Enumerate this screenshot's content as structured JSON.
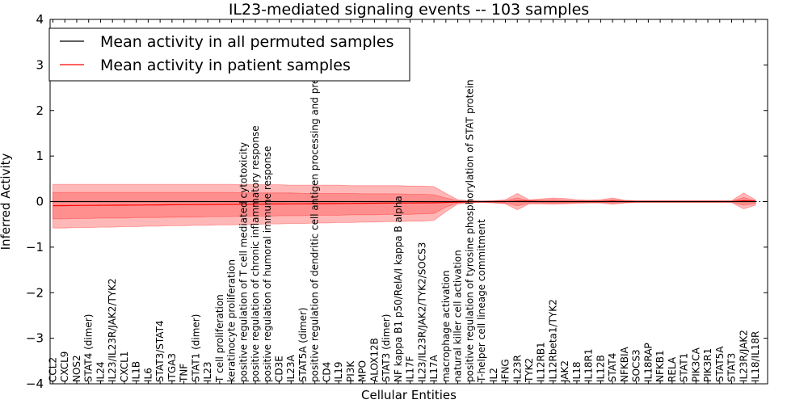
{
  "chart_data": {
    "type": "line",
    "title": "IL23-mediated signaling events -- 103 samples",
    "xlabel": "Cellular Entities",
    "ylabel": "Inferred Activity",
    "ylim": [
      -4,
      4
    ],
    "yticks": [
      -4,
      -3,
      -2,
      -1,
      0,
      1,
      2,
      3,
      4
    ],
    "legend_position": "top-left",
    "categories": [
      "CCL2",
      "CXCL9",
      "NOS2",
      "STAT4 (dimer)",
      "IL24",
      "IL23/IL23R/JAK2/TYK2",
      "CXCL1",
      "IL1B",
      "IL6",
      "STAT3/STAT4",
      "ITGA3",
      "TNF",
      "STAT1 (dimer)",
      "IL23",
      "T cell proliferation",
      "keratinocyte proliferation",
      "positive regulation of T cell mediated cytotoxicity",
      "positive regulation of chronic inflammatory response",
      "positive regulation of humoral immune response",
      "CD3E",
      "IL23A",
      "STAT5A (dimer)",
      "positive regulation of dendritic cell antigen processing and presentation",
      "CD4",
      "IL19",
      "PI3K",
      "MPO",
      "ALOX12B",
      "STAT3 (dimer)",
      "NF kappa B1 p50/RelA/I kappa B alpha",
      "IL17F",
      "IL23/IL23R/JAK2/TYK2/SOCS3",
      "IL17A",
      "macrophage activation",
      "natural killer cell activation",
      "positive regulation of tyrosine phosphorylation of STAT protein",
      "T-helper cell lineage commitment",
      "IL2",
      "IFNG",
      "IL23R",
      "TYK2",
      "IL12RB1",
      "IL12Rbeta1/TYK2",
      "JAK2",
      "IL18",
      "IL18R1",
      "IL12B",
      "STAT4",
      "NFKBIA",
      "SOCS3",
      "IL18RAP",
      "NFKB1",
      "RELA",
      "STAT1",
      "PIK3CA",
      "PIK3R1",
      "STAT5A",
      "STAT3",
      "IL23R/JAK2",
      "IL18/IL18R"
    ],
    "series": [
      {
        "name": "Mean activity in all permuted samples",
        "color": "#000000",
        "values": [
          0,
          0,
          0,
          0,
          0,
          0,
          0,
          0,
          0,
          0,
          0,
          0,
          0,
          0,
          0,
          0,
          0,
          0,
          0,
          0,
          0,
          0,
          0,
          0,
          0,
          0,
          0,
          0,
          0,
          0,
          0,
          0,
          0,
          0,
          0,
          0,
          0,
          0,
          0,
          0,
          0,
          0,
          0,
          0,
          0,
          0,
          0,
          0,
          0,
          0,
          0,
          0,
          0,
          0,
          0,
          0,
          0,
          0,
          0,
          0
        ]
      },
      {
        "name": "Mean activity in patient samples",
        "color": "#ff0000",
        "values": [
          -0.09,
          -0.088,
          -0.086,
          -0.084,
          -0.082,
          -0.08,
          -0.078,
          -0.076,
          -0.074,
          -0.072,
          -0.07,
          -0.068,
          -0.066,
          -0.064,
          -0.062,
          -0.06,
          -0.058,
          -0.056,
          -0.054,
          -0.052,
          -0.05,
          -0.048,
          -0.046,
          -0.044,
          -0.042,
          -0.04,
          -0.038,
          -0.036,
          -0.034,
          -0.032,
          -0.03,
          -0.028,
          -0.026,
          -0.02,
          -0.01,
          0,
          0,
          0,
          0,
          0.01,
          0.01,
          0,
          0,
          0,
          0,
          0,
          0,
          0.01,
          0,
          0,
          0,
          0,
          0,
          0,
          0,
          0,
          0,
          0,
          0.02,
          0.01
        ]
      }
    ],
    "bands": [
      {
        "name": "outer",
        "color": "#ff0000",
        "opacity": 0.28,
        "upper": [
          0.38,
          0.38,
          0.38,
          0.38,
          0.38,
          0.38,
          0.38,
          0.38,
          0.38,
          0.38,
          0.38,
          0.38,
          0.38,
          0.38,
          0.38,
          0.38,
          0.37,
          0.37,
          0.37,
          0.37,
          0.36,
          0.36,
          0.36,
          0.36,
          0.36,
          0.35,
          0.35,
          0.35,
          0.35,
          0.35,
          0.34,
          0.34,
          0.33,
          0.18,
          0.04,
          0.02,
          0.01,
          0.02,
          0.04,
          0.18,
          0.04,
          0.06,
          0.08,
          0.07,
          0.04,
          0.03,
          0.04,
          0.08,
          0.03,
          0.02,
          0.02,
          0.02,
          0.02,
          0.02,
          0.02,
          0.02,
          0.02,
          0.02,
          0.19,
          0.04
        ],
        "lower": [
          -0.58,
          -0.58,
          -0.57,
          -0.57,
          -0.56,
          -0.56,
          -0.55,
          -0.55,
          -0.54,
          -0.54,
          -0.53,
          -0.53,
          -0.52,
          -0.52,
          -0.51,
          -0.51,
          -0.5,
          -0.5,
          -0.49,
          -0.49,
          -0.48,
          -0.48,
          -0.47,
          -0.47,
          -0.46,
          -0.46,
          -0.45,
          -0.45,
          -0.44,
          -0.44,
          -0.43,
          -0.43,
          -0.41,
          -0.22,
          -0.05,
          -0.03,
          -0.02,
          -0.03,
          -0.05,
          -0.18,
          -0.05,
          -0.05,
          -0.06,
          -0.05,
          -0.04,
          -0.03,
          -0.03,
          -0.06,
          -0.03,
          -0.02,
          -0.02,
          -0.02,
          -0.02,
          -0.02,
          -0.02,
          -0.02,
          -0.02,
          -0.02,
          -0.16,
          -0.08
        ]
      },
      {
        "name": "inner",
        "color": "#ff0000",
        "opacity": 0.22,
        "upper": [
          0.2,
          0.2,
          0.2,
          0.2,
          0.2,
          0.2,
          0.2,
          0.2,
          0.2,
          0.2,
          0.2,
          0.2,
          0.2,
          0.2,
          0.2,
          0.2,
          0.19,
          0.19,
          0.19,
          0.19,
          0.19,
          0.18,
          0.18,
          0.18,
          0.18,
          0.18,
          0.17,
          0.17,
          0.17,
          0.17,
          0.16,
          0.16,
          0.15,
          0.08,
          0.02,
          0.01,
          0.01,
          0.01,
          0.02,
          0.08,
          0.02,
          0.03,
          0.04,
          0.03,
          0.02,
          0.02,
          0.02,
          0.04,
          0.02,
          0.01,
          0.01,
          0.01,
          0.01,
          0.01,
          0.01,
          0.01,
          0.01,
          0.01,
          0.09,
          0.02
        ],
        "lower": [
          -0.38,
          -0.38,
          -0.37,
          -0.37,
          -0.36,
          -0.36,
          -0.36,
          -0.35,
          -0.35,
          -0.35,
          -0.34,
          -0.34,
          -0.34,
          -0.33,
          -0.33,
          -0.33,
          -0.32,
          -0.32,
          -0.32,
          -0.31,
          -0.31,
          -0.31,
          -0.3,
          -0.3,
          -0.3,
          -0.29,
          -0.29,
          -0.29,
          -0.28,
          -0.28,
          -0.28,
          -0.27,
          -0.26,
          -0.12,
          -0.03,
          -0.02,
          -0.01,
          -0.02,
          -0.03,
          -0.09,
          -0.03,
          -0.03,
          -0.03,
          -0.03,
          -0.02,
          -0.02,
          -0.02,
          -0.03,
          -0.02,
          -0.01,
          -0.01,
          -0.01,
          -0.01,
          -0.01,
          -0.01,
          -0.01,
          -0.01,
          -0.01,
          -0.08,
          -0.04
        ]
      }
    ]
  }
}
